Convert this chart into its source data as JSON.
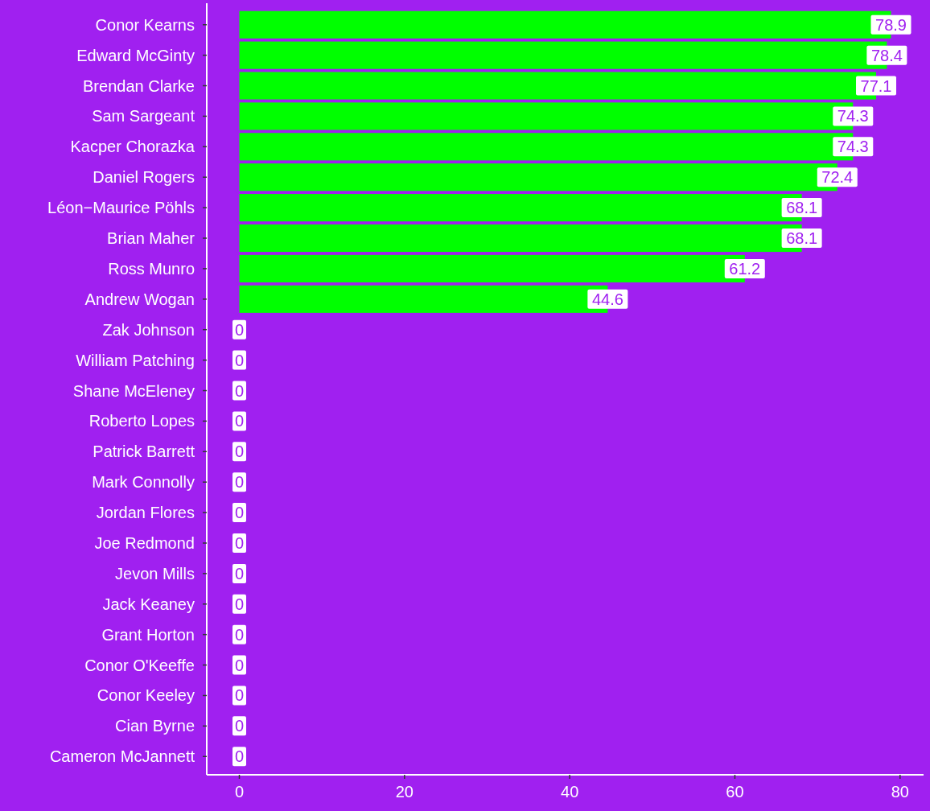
{
  "chart_data": {
    "type": "bar",
    "orientation": "horizontal",
    "categories": [
      "Conor Kearns",
      "Edward McGinty",
      "Brendan Clarke",
      "Sam Sargeant",
      "Kacper Chorazka",
      "Daniel Rogers",
      "Léon−Maurice Pöhls",
      "Brian Maher",
      "Ross Munro",
      "Andrew Wogan",
      "Zak Johnson",
      "William Patching",
      "Shane McEleney",
      "Roberto Lopes",
      "Patrick Barrett",
      "Mark Connolly",
      "Jordan Flores",
      "Joe Redmond",
      "Jevon Mills",
      "Jack Keaney",
      "Grant Horton",
      "Conor O'Keeffe",
      "Conor Keeley",
      "Cian Byrne",
      "Cameron McJannett"
    ],
    "values": [
      78.9,
      78.4,
      77.1,
      74.3,
      74.3,
      72.4,
      68.1,
      68.1,
      61.2,
      44.6,
      0,
      0,
      0,
      0,
      0,
      0,
      0,
      0,
      0,
      0,
      0,
      0,
      0,
      0,
      0
    ],
    "color": "#00ff00",
    "xlim": [
      -3.945,
      82.845
    ],
    "xticks": [
      0,
      20,
      40,
      60,
      80
    ],
    "data_labels": true
  }
}
